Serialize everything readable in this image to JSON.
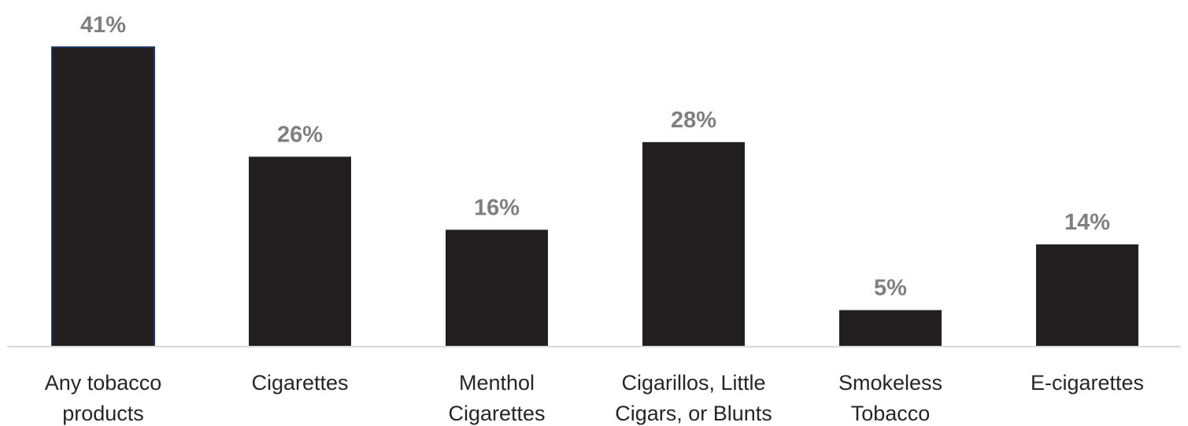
{
  "chart_data": {
    "type": "bar",
    "title": "",
    "xlabel": "",
    "ylabel": "",
    "categories": [
      [
        "Any tobacco",
        "products"
      ],
      [
        "Cigarettes"
      ],
      [
        "Menthol",
        "Cigarettes"
      ],
      [
        "Cigarillos, Little",
        "Cigars, or Blunts"
      ],
      [
        "Smokeless",
        "Tobacco"
      ],
      [
        "E-cigarettes"
      ]
    ],
    "values": [
      41,
      26,
      16,
      28,
      5,
      14
    ],
    "data_labels": [
      "41%",
      "26%",
      "16%",
      "28%",
      "5%",
      "14%"
    ],
    "unit": "%",
    "ylim": [
      0,
      42
    ],
    "grid": false,
    "legend": "none",
    "colors": {
      "bar": "#231f20",
      "first_bar_outline": "#1f3864",
      "axis": "#d9d9d9",
      "data_label": "#7f7f7f",
      "category_label": "#262626"
    }
  }
}
